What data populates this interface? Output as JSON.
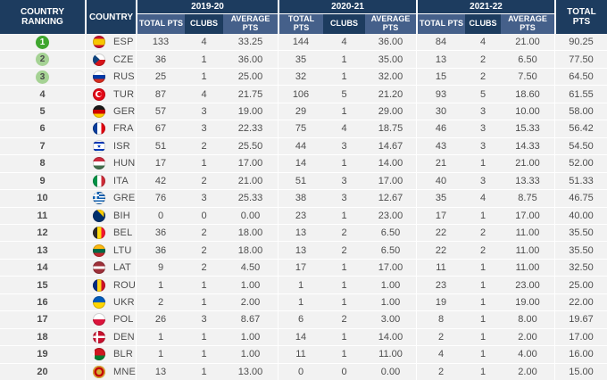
{
  "table": {
    "header": {
      "country_ranking": "COUNTRY RANKING",
      "country": "COUNTRY",
      "seasons": [
        "2019-20",
        "2020-21",
        "2021-22"
      ],
      "total_pts_label": "TOTAL PTS",
      "clubs_label": "CLUBS",
      "average_pts_label": "AVERAGE PTS",
      "overall_total_label": "TOTAL PTS"
    },
    "colors": {
      "header_dark": "#1d3c5f",
      "header_light": "#45608a",
      "row_bg": "#f2f2f2",
      "rank1_badge": "#3fa62f",
      "rank23_badge": "#a5d294"
    },
    "rows": [
      {
        "rank": 1,
        "code": "ESP",
        "flag": "esp-flag-icon",
        "s1": [
          "133",
          "4",
          "33.25"
        ],
        "s2": [
          "144",
          "4",
          "36.00"
        ],
        "s3": [
          "84",
          "4",
          "21.00"
        ],
        "total": "90.25"
      },
      {
        "rank": 2,
        "code": "CZE",
        "flag": "cze-flag-icon",
        "s1": [
          "36",
          "1",
          "36.00"
        ],
        "s2": [
          "35",
          "1",
          "35.00"
        ],
        "s3": [
          "13",
          "2",
          "6.50"
        ],
        "total": "77.50"
      },
      {
        "rank": 3,
        "code": "RUS",
        "flag": "rus-flag-icon",
        "s1": [
          "25",
          "1",
          "25.00"
        ],
        "s2": [
          "32",
          "1",
          "32.00"
        ],
        "s3": [
          "15",
          "2",
          "7.50"
        ],
        "total": "64.50"
      },
      {
        "rank": 4,
        "code": "TUR",
        "flag": "tur-flag-icon",
        "s1": [
          "87",
          "4",
          "21.75"
        ],
        "s2": [
          "106",
          "5",
          "21.20"
        ],
        "s3": [
          "93",
          "5",
          "18.60"
        ],
        "total": "61.55"
      },
      {
        "rank": 5,
        "code": "GER",
        "flag": "ger-flag-icon",
        "s1": [
          "57",
          "3",
          "19.00"
        ],
        "s2": [
          "29",
          "1",
          "29.00"
        ],
        "s3": [
          "30",
          "3",
          "10.00"
        ],
        "total": "58.00"
      },
      {
        "rank": 6,
        "code": "FRA",
        "flag": "fra-flag-icon",
        "s1": [
          "67",
          "3",
          "22.33"
        ],
        "s2": [
          "75",
          "4",
          "18.75"
        ],
        "s3": [
          "46",
          "3",
          "15.33"
        ],
        "total": "56.42"
      },
      {
        "rank": 7,
        "code": "ISR",
        "flag": "isr-flag-icon",
        "s1": [
          "51",
          "2",
          "25.50"
        ],
        "s2": [
          "44",
          "3",
          "14.67"
        ],
        "s3": [
          "43",
          "3",
          "14.33"
        ],
        "total": "54.50"
      },
      {
        "rank": 8,
        "code": "HUN",
        "flag": "hun-flag-icon",
        "s1": [
          "17",
          "1",
          "17.00"
        ],
        "s2": [
          "14",
          "1",
          "14.00"
        ],
        "s3": [
          "21",
          "1",
          "21.00"
        ],
        "total": "52.00"
      },
      {
        "rank": 9,
        "code": "ITA",
        "flag": "ita-flag-icon",
        "s1": [
          "42",
          "2",
          "21.00"
        ],
        "s2": [
          "51",
          "3",
          "17.00"
        ],
        "s3": [
          "40",
          "3",
          "13.33"
        ],
        "total": "51.33"
      },
      {
        "rank": 10,
        "code": "GRE",
        "flag": "gre-flag-icon",
        "s1": [
          "76",
          "3",
          "25.33"
        ],
        "s2": [
          "38",
          "3",
          "12.67"
        ],
        "s3": [
          "35",
          "4",
          "8.75"
        ],
        "total": "46.75"
      },
      {
        "rank": 11,
        "code": "BIH",
        "flag": "bih-flag-icon",
        "s1": [
          "0",
          "0",
          "0.00"
        ],
        "s2": [
          "23",
          "1",
          "23.00"
        ],
        "s3": [
          "17",
          "1",
          "17.00"
        ],
        "total": "40.00"
      },
      {
        "rank": 12,
        "code": "BEL",
        "flag": "bel-flag-icon",
        "s1": [
          "36",
          "2",
          "18.00"
        ],
        "s2": [
          "13",
          "2",
          "6.50"
        ],
        "s3": [
          "22",
          "2",
          "11.00"
        ],
        "total": "35.50"
      },
      {
        "rank": 13,
        "code": "LTU",
        "flag": "ltu-flag-icon",
        "s1": [
          "36",
          "2",
          "18.00"
        ],
        "s2": [
          "13",
          "2",
          "6.50"
        ],
        "s3": [
          "22",
          "2",
          "11.00"
        ],
        "total": "35.50"
      },
      {
        "rank": 14,
        "code": "LAT",
        "flag": "lat-flag-icon",
        "s1": [
          "9",
          "2",
          "4.50"
        ],
        "s2": [
          "17",
          "1",
          "17.00"
        ],
        "s3": [
          "11",
          "1",
          "11.00"
        ],
        "total": "32.50"
      },
      {
        "rank": 15,
        "code": "ROU",
        "flag": "rou-flag-icon",
        "s1": [
          "1",
          "1",
          "1.00"
        ],
        "s2": [
          "1",
          "1",
          "1.00"
        ],
        "s3": [
          "23",
          "1",
          "23.00"
        ],
        "total": "25.00"
      },
      {
        "rank": 16,
        "code": "UKR",
        "flag": "ukr-flag-icon",
        "s1": [
          "2",
          "1",
          "2.00"
        ],
        "s2": [
          "1",
          "1",
          "1.00"
        ],
        "s3": [
          "19",
          "1",
          "19.00"
        ],
        "total": "22.00"
      },
      {
        "rank": 17,
        "code": "POL",
        "flag": "pol-flag-icon",
        "s1": [
          "26",
          "3",
          "8.67"
        ],
        "s2": [
          "6",
          "2",
          "3.00"
        ],
        "s3": [
          "8",
          "1",
          "8.00"
        ],
        "total": "19.67"
      },
      {
        "rank": 18,
        "code": "DEN",
        "flag": "den-flag-icon",
        "s1": [
          "1",
          "1",
          "1.00"
        ],
        "s2": [
          "14",
          "1",
          "14.00"
        ],
        "s3": [
          "2",
          "1",
          "2.00"
        ],
        "total": "17.00"
      },
      {
        "rank": 19,
        "code": "BLR",
        "flag": "blr-flag-icon",
        "s1": [
          "1",
          "1",
          "1.00"
        ],
        "s2": [
          "11",
          "1",
          "11.00"
        ],
        "s3": [
          "4",
          "1",
          "4.00"
        ],
        "total": "16.00"
      },
      {
        "rank": 20,
        "code": "MNE",
        "flag": "mne-flag-icon",
        "s1": [
          "13",
          "1",
          "13.00"
        ],
        "s2": [
          "0",
          "0",
          "0.00"
        ],
        "s3": [
          "2",
          "1",
          "2.00"
        ],
        "total": "15.00"
      }
    ]
  }
}
